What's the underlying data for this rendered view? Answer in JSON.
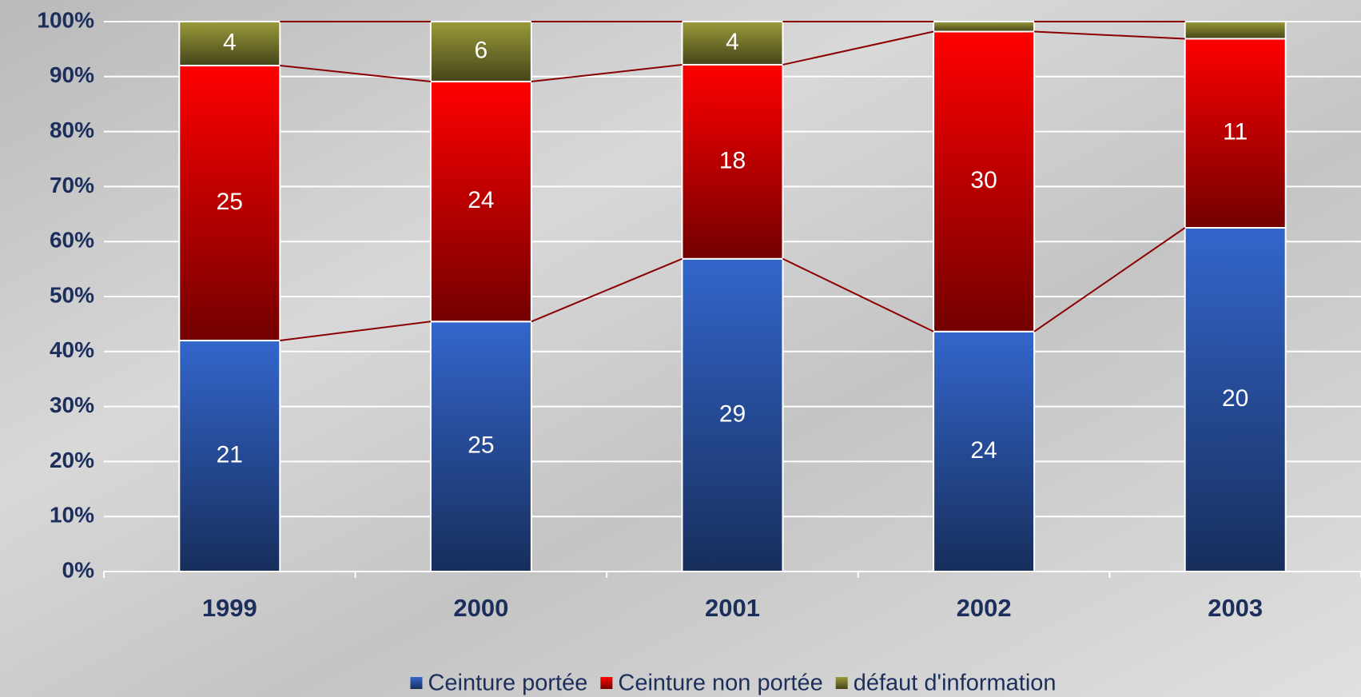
{
  "chart_data": {
    "type": "bar",
    "stacking": "percent",
    "categories": [
      "1999",
      "2000",
      "2001",
      "2002",
      "2003"
    ],
    "series": [
      {
        "name": "Ceinture portée",
        "color": "#3366cc",
        "values": [
          21,
          25,
          29,
          24,
          20
        ]
      },
      {
        "name": "Ceinture non portée",
        "color": "#ff0000",
        "values": [
          25,
          24,
          18,
          30,
          11
        ]
      },
      {
        "name": "défaut d'information",
        "color": "#9a9a3a",
        "values": [
          4,
          6,
          4,
          1,
          1
        ]
      }
    ],
    "ylim": [
      0,
      100
    ],
    "yticks": [
      {
        "value": 0,
        "label": "0%"
      },
      {
        "value": 10,
        "label": "10%"
      },
      {
        "value": 20,
        "label": "20%"
      },
      {
        "value": 30,
        "label": "30%"
      },
      {
        "value": 40,
        "label": "40%"
      },
      {
        "value": 50,
        "label": "50%"
      },
      {
        "value": 60,
        "label": "60%"
      },
      {
        "value": 70,
        "label": "70%"
      },
      {
        "value": 80,
        "label": "80%"
      },
      {
        "value": 90,
        "label": "90%"
      },
      {
        "value": 100,
        "label": "100%"
      }
    ],
    "grid": true,
    "legend": "bottom"
  }
}
